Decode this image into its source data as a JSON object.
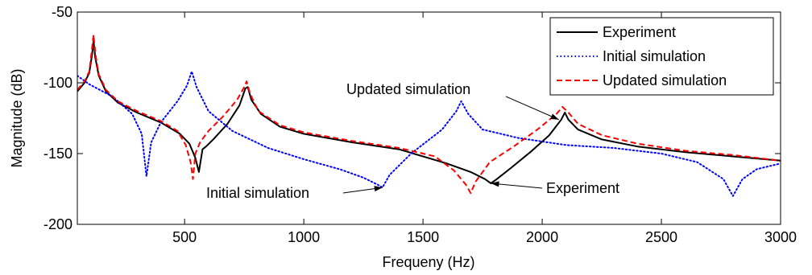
{
  "chart_data": {
    "type": "line",
    "title": "",
    "xlabel": "Frequeny (Hz)",
    "ylabel": "Magnitude (dB)",
    "xlim": [
      50,
      3000
    ],
    "ylim": [
      -200,
      -50
    ],
    "xticks": [
      500,
      1000,
      1500,
      2000,
      2500,
      3000
    ],
    "yticks": [
      -50,
      -100,
      -150,
      -200
    ],
    "grid": false,
    "legend_position": "top-right",
    "series": [
      {
        "name": "Experiment",
        "color": "#000000",
        "style": "solid",
        "x": [
          50,
          80,
          100,
          112,
          118,
          125,
          140,
          170,
          220,
          300,
          400,
          480,
          520,
          545,
          560,
          575,
          590,
          620,
          680,
          730,
          755,
          765,
          780,
          820,
          900,
          1000,
          1200,
          1400,
          1600,
          1700,
          1760,
          1785,
          1810,
          1870,
          1950,
          2030,
          2080,
          2095,
          2110,
          2150,
          2250,
          2400,
          2600,
          2800,
          3000
        ],
        "y": [
          -106,
          -100,
          -93,
          -80,
          -70,
          -82,
          -95,
          -106,
          -114,
          -121,
          -128,
          -136,
          -143,
          -153,
          -163,
          -147,
          -145,
          -140,
          -129,
          -116,
          -104,
          -103,
          -112,
          -122,
          -131,
          -136,
          -142,
          -147,
          -157,
          -163,
          -168,
          -171,
          -168,
          -160,
          -149,
          -137,
          -126,
          -121,
          -126,
          -133,
          -140,
          -145,
          -149,
          -152,
          -155
        ]
      },
      {
        "name": "Initial simulation",
        "color": "#0000ff",
        "style": "dotted",
        "x": [
          50,
          100,
          200,
          280,
          320,
          340,
          360,
          400,
          470,
          510,
          530,
          550,
          600,
          700,
          850,
          1000,
          1150,
          1250,
          1310,
          1330,
          1360,
          1450,
          1580,
          1640,
          1660,
          1690,
          1750,
          1900,
          2100,
          2300,
          2500,
          2650,
          2760,
          2800,
          2840,
          2900,
          3000
        ],
        "y": [
          -95,
          -101,
          -110,
          -122,
          -136,
          -166,
          -142,
          -128,
          -113,
          -102,
          -92,
          -103,
          -120,
          -134,
          -146,
          -154,
          -161,
          -167,
          -172,
          -174,
          -165,
          -150,
          -133,
          -120,
          -113,
          -122,
          -133,
          -139,
          -144,
          -146,
          -150,
          -156,
          -168,
          -180,
          -168,
          -161,
          -157
        ]
      },
      {
        "name": "Updated simulation",
        "color": "#ff0000",
        "style": "dashed",
        "x": [
          50,
          80,
          100,
          110,
          118,
          126,
          140,
          170,
          220,
          300,
          400,
          470,
          505,
          525,
          535,
          545,
          565,
          600,
          660,
          720,
          750,
          760,
          775,
          810,
          900,
          1000,
          1200,
          1400,
          1550,
          1630,
          1680,
          1700,
          1720,
          1780,
          1880,
          1980,
          2060,
          2085,
          2110,
          2150,
          2250,
          2400,
          2600,
          2800,
          3000
        ],
        "y": [
          -105,
          -99,
          -92,
          -78,
          -66,
          -80,
          -94,
          -105,
          -113,
          -120,
          -127,
          -134,
          -144,
          -156,
          -168,
          -150,
          -142,
          -134,
          -124,
          -112,
          -103,
          -99,
          -108,
          -120,
          -130,
          -135,
          -141,
          -146,
          -152,
          -162,
          -172,
          -178,
          -170,
          -156,
          -145,
          -133,
          -122,
          -117,
          -121,
          -129,
          -137,
          -143,
          -148,
          -151,
          -155
        ]
      }
    ],
    "annotations": [
      {
        "text": "Updated simulation",
        "target_x": 2070,
        "target_y": -126
      },
      {
        "text": "Initial simulation",
        "target_x": 1330,
        "target_y": -174
      },
      {
        "text": "Experiment",
        "target_x": 1785,
        "target_y": -171
      }
    ]
  }
}
